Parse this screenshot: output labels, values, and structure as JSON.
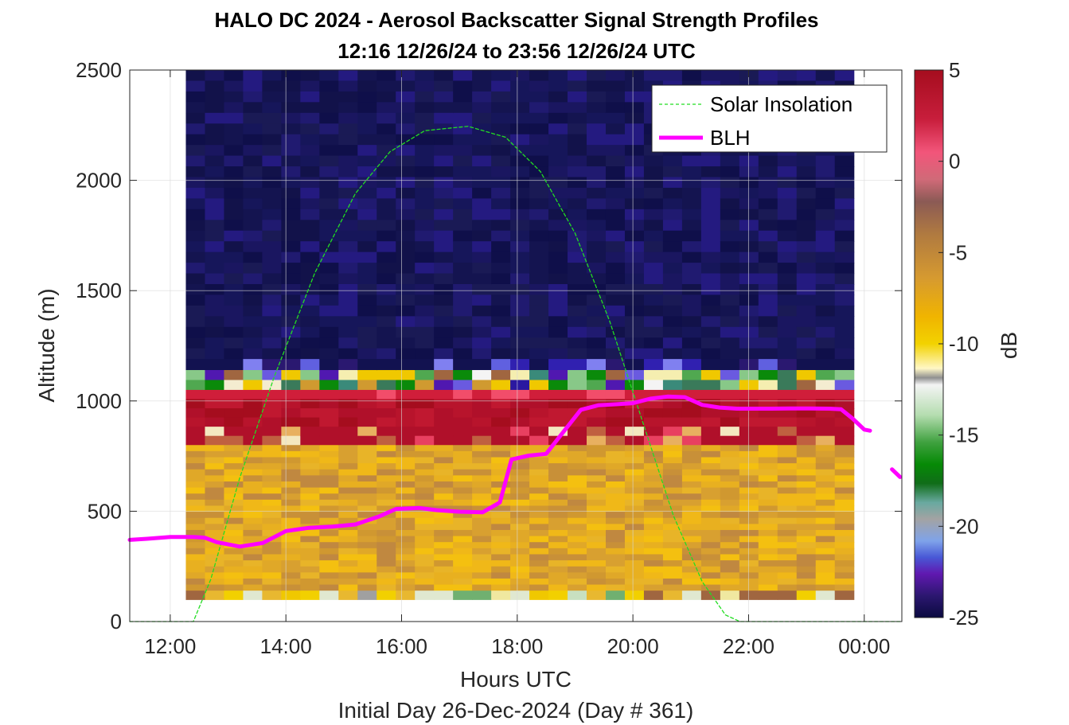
{
  "chart_data": {
    "type": "heatmap",
    "title": "HALO DC 2024 - Aerosol Backscatter Signal Strength Profiles",
    "subtitle": "12:16 12/26/24 to 23:56 12/26/24  UTC",
    "xlabel": "Hours UTC",
    "ylabel": "Altitude (m)",
    "footer": "Initial Day 26-Dec-2024 (Day # 361)",
    "xlim": [
      11.3,
      24.65
    ],
    "ylim": [
      0,
      2500
    ],
    "x_ticks": [
      12,
      14,
      16,
      18,
      20,
      22,
      24
    ],
    "x_tick_labels": [
      "12:00",
      "14:00",
      "16:00",
      "18:00",
      "20:00",
      "22:00",
      "00:00"
    ],
    "y_ticks": [
      0,
      500,
      1000,
      1500,
      2000,
      2500
    ],
    "y_tick_labels": [
      "0",
      "500",
      "1000",
      "1500",
      "2000",
      "2500"
    ],
    "grid": true,
    "legend_position": "top-right",
    "colorbar": {
      "label": "dB",
      "limits": [
        -25,
        5
      ],
      "ticks": [
        5,
        0,
        -5,
        -10,
        -15,
        -20,
        -25
      ],
      "tick_labels": [
        "5",
        "0",
        "-5",
        "-10",
        "-15",
        "-20",
        "-25"
      ]
    },
    "heatmap": {
      "x_start": 12.27,
      "x_end": 23.93,
      "bin_hours": 0.33,
      "y_bins_from_top": [
        {
          "from": 2500,
          "to": 1190,
          "dB": -24,
          "band": "upper"
        },
        {
          "from": 1190,
          "to": 1140,
          "dB": -19,
          "band": "upper-edge"
        },
        {
          "from": 1140,
          "to": 1050,
          "dB": -12,
          "band": "mixed"
        },
        {
          "from": 1050,
          "to": 800,
          "dB": 4,
          "band": "cloud"
        },
        {
          "from": 800,
          "to": 140,
          "dB": -6,
          "band": "boundary layer"
        },
        {
          "from": 140,
          "to": 100,
          "dB": -10,
          "band": "near-ground"
        }
      ]
    },
    "series": [
      {
        "name": "Solar Insolation",
        "style": "dashed",
        "color": "#22dd22",
        "x": [
          11.3,
          12.4,
          12.7,
          13.2,
          13.8,
          14.5,
          15.2,
          15.8,
          16.4,
          17.15,
          17.8,
          18.4,
          19.0,
          19.6,
          20.2,
          20.7,
          21.2,
          21.6,
          21.85,
          24.65
        ],
        "y": [
          0,
          0,
          190,
          650,
          1110,
          1580,
          1940,
          2130,
          2225,
          2245,
          2195,
          2040,
          1760,
          1360,
          880,
          480,
          180,
          30,
          0,
          0
        ]
      },
      {
        "name": "BLH",
        "style": "solid",
        "color": "#ff00ff",
        "x": [
          11.3,
          11.6,
          12.0,
          12.4,
          12.6,
          12.8,
          13.2,
          13.6,
          14.0,
          14.4,
          14.8,
          15.2,
          15.6,
          15.9,
          16.3,
          16.6,
          17.0,
          17.4,
          17.7,
          17.9,
          18.2,
          18.5,
          18.8,
          19.1,
          19.4,
          19.7,
          20.0,
          20.3,
          20.6,
          20.9,
          21.2,
          21.5,
          21.8,
          22.1,
          22.4,
          22.7,
          23.0,
          23.4,
          23.6,
          23.8,
          24.0,
          24.1
        ],
        "y": [
          370,
          375,
          383,
          383,
          380,
          360,
          340,
          356,
          410,
          425,
          430,
          440,
          475,
          510,
          515,
          505,
          498,
          495,
          540,
          735,
          752,
          760,
          860,
          960,
          980,
          985,
          990,
          1010,
          1020,
          1017,
          982,
          970,
          965,
          965,
          965,
          966,
          966,
          965,
          962,
          920,
          870,
          865
        ]
      },
      {
        "name": "BLH",
        "style": "solid",
        "color": "#ff00ff",
        "x": [
          24.48,
          24.62
        ],
        "y": [
          690,
          655
        ]
      }
    ]
  }
}
